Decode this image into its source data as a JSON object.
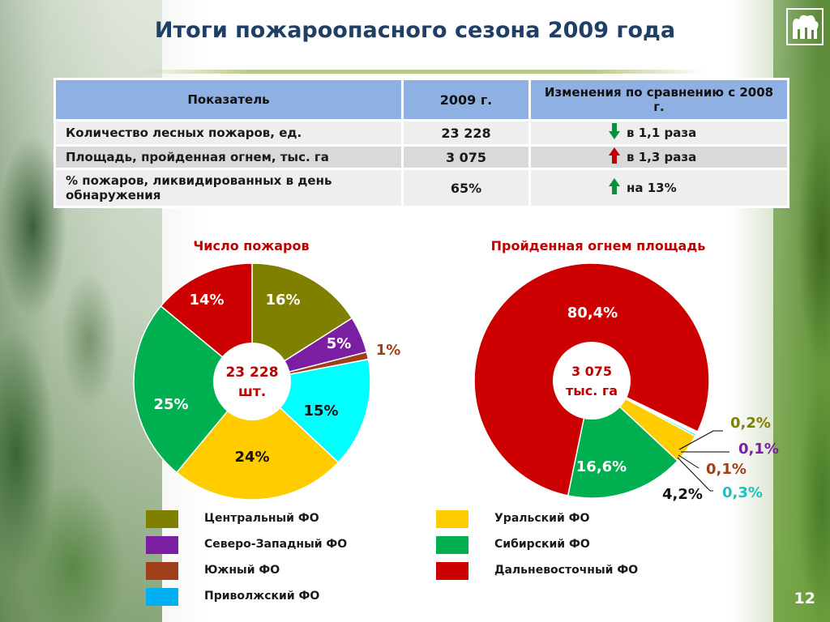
{
  "title": "Итоги пожароопасного сезона 2009 года",
  "page_number": "12",
  "table": {
    "headers": [
      "Показатель",
      "2009 г.",
      "Изменения по сравнению с 2008 г."
    ],
    "rows": [
      {
        "name": "Количество лесных пожаров, ед.",
        "value": "23 228",
        "change": "в 1,1 раза",
        "direction": "down",
        "arrow_color": "#0a8f3c"
      },
      {
        "name": "Площадь, пройденная огнем, тыс. га",
        "value": "3 075",
        "change": "в 1,3 раза",
        "direction": "up",
        "arrow_color": "#c00000"
      },
      {
        "name": "% пожаров, ликвидированных в день обнаружения",
        "value": "65%",
        "change": "на 13%",
        "direction": "up",
        "arrow_color": "#0a8f3c"
      }
    ]
  },
  "chart_data": [
    {
      "type": "pie",
      "title": "Число пожаров",
      "center_label": [
        "23 228",
        "шт."
      ],
      "categories": [
        "Центральный ФО",
        "Северо-Западный ФО",
        "Южный ФО",
        "Приволжский ФО",
        "Уральский ФО",
        "Сибирский ФО",
        "Дальневосточный ФО"
      ],
      "values": [
        16,
        5,
        1,
        15,
        24,
        25,
        14
      ],
      "labels": [
        "16%",
        "5%",
        "1%",
        "15%",
        "24%",
        "25%",
        "14%"
      ],
      "colors": [
        "#808000",
        "#7b1fa2",
        "#a0401a",
        "#00ffff",
        "#ffcc00",
        "#00b050",
        "#cc0000"
      ]
    },
    {
      "type": "pie",
      "title": "Пройденная огнем площадь",
      "center_label": [
        "3 075",
        "тыс. га"
      ],
      "categories": [
        "Центральный ФО",
        "Северо-Западный ФО",
        "Южный ФО",
        "Приволжский ФО",
        "Уральский ФО",
        "Сибирский ФО",
        "Дальневосточный ФО"
      ],
      "values": [
        0.2,
        0.1,
        0.1,
        0.3,
        4.2,
        16.6,
        80.4
      ],
      "labels": [
        "0,2%",
        "0,1%",
        "0,1%",
        "0,3%",
        "4,2%",
        "16,6%",
        "80,4%"
      ],
      "colors": [
        "#808000",
        "#7b1fa2",
        "#a0401a",
        "#00ffff",
        "#ffcc00",
        "#00b050",
        "#cc0000"
      ]
    }
  ],
  "legend": [
    {
      "label": "Центральный ФО",
      "color": "#808000"
    },
    {
      "label": "Северо-Западный ФО",
      "color": "#7b1fa2"
    },
    {
      "label": "Южный ФО",
      "color": "#a0401a"
    },
    {
      "label": "Приволжский ФО",
      "color": "#00b0f0"
    },
    {
      "label": "Уральский ФО",
      "color": "#ffcc00"
    },
    {
      "label": "Сибирский ФО",
      "color": "#00b050"
    },
    {
      "label": "Дальневосточный ФО",
      "color": "#cc0000"
    }
  ]
}
